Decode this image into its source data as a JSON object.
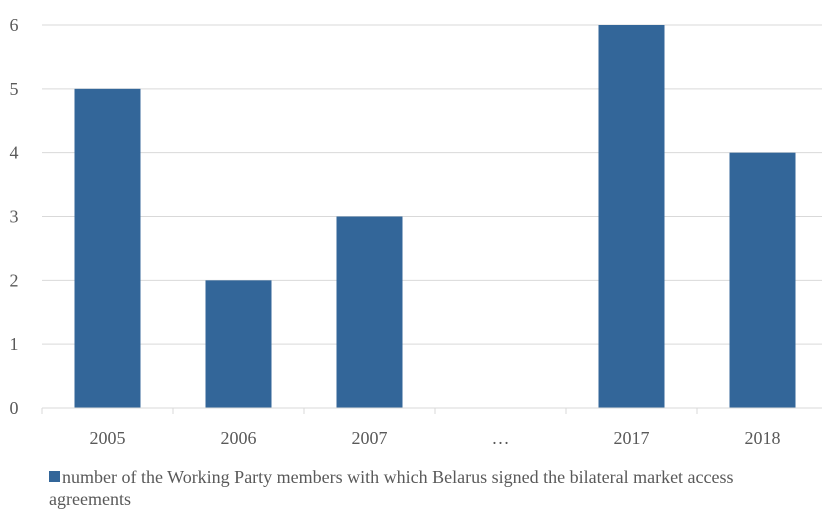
{
  "chart_data": {
    "type": "bar",
    "categories": [
      "2005",
      "2006",
      "2007",
      "…",
      "2017",
      "2018"
    ],
    "series": [
      {
        "name": "number of the Working Party members with which Belarus signed the bilateral market access agreements",
        "values": [
          5,
          2,
          3,
          null,
          6,
          4
        ],
        "color": "#336699"
      }
    ],
    "yticks": [
      "0",
      "1",
      "2",
      "3",
      "4",
      "5",
      "6"
    ],
    "ylim": [
      0,
      6
    ],
    "grid": true,
    "legend_position": "bottom-left",
    "title": "",
    "xlabel": "",
    "ylabel": ""
  }
}
